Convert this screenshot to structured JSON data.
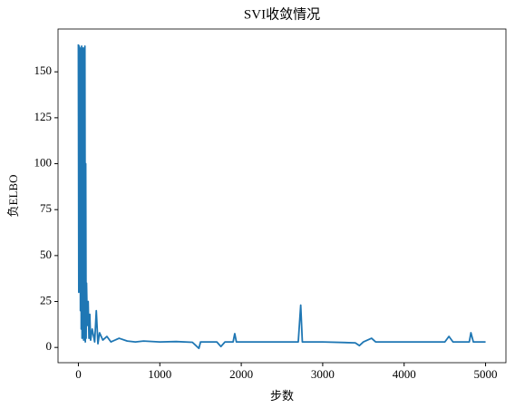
{
  "chart_data": {
    "type": "line",
    "title": "SVI收敛情况",
    "x_label": "步数",
    "y_label": "负ELBO",
    "color": "#1f77b4",
    "x": [
      0,
      5,
      10,
      15,
      20,
      25,
      30,
      35,
      40,
      45,
      50,
      55,
      60,
      65,
      70,
      75,
      80,
      85,
      90,
      95,
      100,
      110,
      120,
      130,
      140,
      150,
      170,
      200,
      220,
      240,
      260,
      300,
      350,
      400,
      500,
      600,
      700,
      800,
      1000,
      1200,
      1400,
      1480,
      1500,
      1700,
      1750,
      1800,
      1900,
      1920,
      1940,
      2000,
      2500,
      2700,
      2730,
      2750,
      3000,
      3400,
      3450,
      3500,
      3600,
      3650,
      4000,
      4500,
      4550,
      4600,
      4800,
      4820,
      4850,
      5000
    ],
    "values": [
      165,
      30,
      164,
      40,
      163,
      20,
      160,
      10,
      164,
      5,
      150,
      8,
      163,
      4,
      140,
      6,
      164,
      3,
      100,
      5,
      35,
      12,
      25,
      5,
      18,
      4,
      10,
      3,
      20,
      2,
      8,
      4,
      6,
      3,
      5,
      3.5,
      3,
      3.5,
      3,
      3.2,
      2.8,
      -0.5,
      3,
      3,
      0.5,
      3,
      3,
      7.5,
      3,
      3,
      3,
      3,
      23,
      3,
      3,
      2.5,
      1,
      3,
      5,
      3,
      3,
      3,
      6,
      3,
      3,
      8,
      3,
      3
    ],
    "xlim": [
      -250,
      5250
    ],
    "xticks": [
      0,
      1000,
      2000,
      3000,
      4000,
      5000
    ],
    "ylim": [
      -8.3,
      173.3
    ],
    "yticks": [
      0,
      25,
      50,
      75,
      100,
      125,
      150
    ]
  }
}
